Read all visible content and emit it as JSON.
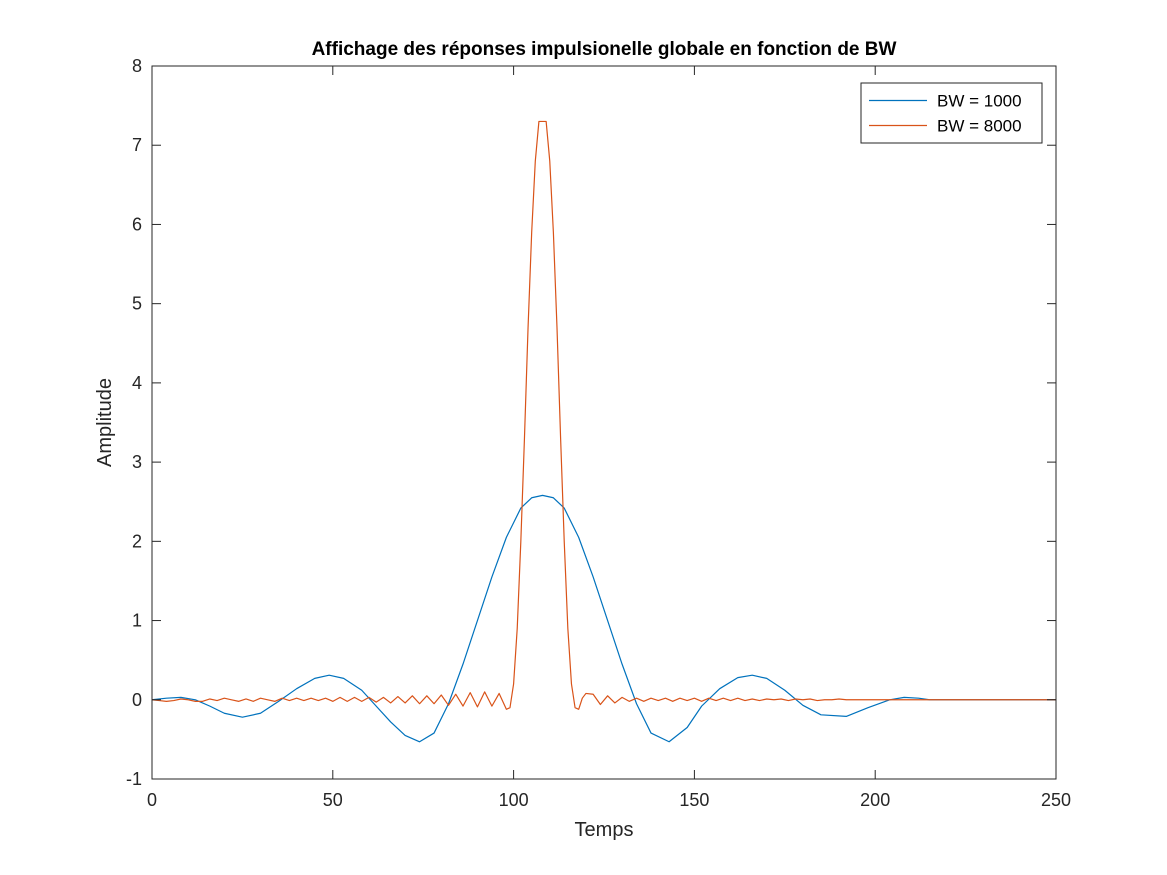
{
  "chart_data": {
    "type": "line",
    "title": "Affichage des réponses impulsionelle globale en fonction de BW",
    "xlabel": "Temps",
    "ylabel": "Amplitude",
    "xlim": [
      0,
      250
    ],
    "ylim": [
      -1,
      8
    ],
    "xticks": [
      0,
      50,
      100,
      150,
      200,
      250
    ],
    "xtick_labels": [
      "0",
      "50",
      "100",
      "150",
      "200",
      "250"
    ],
    "yticks": [
      -1,
      0,
      1,
      2,
      3,
      4,
      5,
      6,
      7,
      8
    ],
    "ytick_labels": [
      "-1",
      "0",
      "1",
      "2",
      "3",
      "4",
      "5",
      "6",
      "7",
      "8"
    ],
    "grid": false,
    "legend_position": "top-right",
    "series": [
      {
        "name": "BW = 1000",
        "color": "#0072BD",
        "x": [
          0,
          4,
          8,
          12,
          16,
          20,
          25,
          30,
          35,
          40,
          45,
          49,
          53,
          58,
          62,
          66,
          70,
          74,
          78,
          82,
          86,
          90,
          94,
          98,
          102,
          105,
          108,
          111,
          114,
          118,
          122,
          126,
          130,
          134,
          138,
          143,
          148,
          152,
          157,
          162,
          166,
          170,
          175,
          180,
          185,
          192,
          198,
          204,
          208,
          212,
          215,
          250
        ],
        "y": [
          0,
          0.02,
          0.03,
          0.0,
          -0.08,
          -0.17,
          -0.22,
          -0.17,
          -0.02,
          0.14,
          0.27,
          0.31,
          0.27,
          0.12,
          -0.08,
          -0.28,
          -0.45,
          -0.53,
          -0.42,
          -0.05,
          0.45,
          1.0,
          1.55,
          2.05,
          2.42,
          2.55,
          2.58,
          2.55,
          2.42,
          2.05,
          1.55,
          1.0,
          0.45,
          -0.05,
          -0.42,
          -0.53,
          -0.35,
          -0.08,
          0.14,
          0.28,
          0.31,
          0.27,
          0.12,
          -0.07,
          -0.19,
          -0.21,
          -0.1,
          0.0,
          0.03,
          0.02,
          0.0,
          0.0
        ]
      },
      {
        "name": "BW = 8000",
        "color": "#D95319",
        "x": [
          0,
          2,
          4,
          6,
          8,
          10,
          12,
          14,
          16,
          18,
          20,
          22,
          24,
          26,
          28,
          30,
          32,
          34,
          36,
          38,
          40,
          42,
          44,
          46,
          48,
          50,
          52,
          54,
          56,
          58,
          60,
          62,
          64,
          66,
          68,
          70,
          72,
          74,
          76,
          78,
          80,
          82,
          84,
          86,
          88,
          90,
          92,
          94,
          96,
          98,
          99,
          100,
          101,
          102,
          103,
          104,
          105,
          106,
          107,
          108,
          109,
          110,
          111,
          112,
          113,
          114,
          115,
          116,
          117,
          118,
          119,
          120,
          122,
          124,
          126,
          128,
          130,
          132,
          134,
          136,
          138,
          140,
          142,
          144,
          146,
          148,
          150,
          152,
          154,
          156,
          158,
          160,
          162,
          164,
          166,
          168,
          170,
          172,
          174,
          176,
          178,
          180,
          182,
          184,
          186,
          188,
          190,
          192,
          194,
          196,
          198,
          200,
          202,
          204,
          206,
          208,
          210,
          212,
          214,
          216,
          250
        ],
        "y": [
          0,
          -0.01,
          -0.02,
          -0.01,
          0.01,
          0.0,
          -0.02,
          -0.02,
          0.01,
          -0.01,
          0.02,
          0.0,
          -0.02,
          0.01,
          -0.02,
          0.02,
          0.0,
          -0.02,
          0.02,
          -0.01,
          0.02,
          -0.01,
          0.02,
          -0.01,
          0.02,
          -0.02,
          0.03,
          -0.02,
          0.03,
          -0.02,
          0.03,
          -0.03,
          0.03,
          -0.04,
          0.04,
          -0.04,
          0.05,
          -0.05,
          0.05,
          -0.05,
          0.06,
          -0.07,
          0.07,
          -0.08,
          0.09,
          -0.09,
          0.1,
          -0.08,
          0.08,
          -0.12,
          -0.1,
          0.2,
          0.9,
          2.0,
          3.3,
          4.7,
          5.9,
          6.8,
          7.3,
          7.3,
          7.3,
          6.8,
          5.9,
          4.7,
          3.3,
          2.0,
          0.9,
          0.2,
          -0.1,
          -0.12,
          0.02,
          0.08,
          0.07,
          -0.06,
          0.05,
          -0.04,
          0.03,
          -0.02,
          0.02,
          -0.02,
          0.02,
          -0.01,
          0.02,
          -0.02,
          0.02,
          -0.01,
          0.02,
          -0.02,
          0.02,
          -0.01,
          0.02,
          -0.01,
          0.02,
          -0.01,
          0.01,
          -0.01,
          0.01,
          0.0,
          0.01,
          -0.01,
          0.01,
          0.0,
          0.01,
          -0.01,
          0.0,
          0.0,
          0.01,
          0.0,
          0.0,
          0.0,
          0.0,
          0.0,
          0.0,
          0.0,
          0.0,
          0.0,
          0.0,
          0.0,
          0.0,
          0.0,
          0.0
        ]
      }
    ]
  }
}
